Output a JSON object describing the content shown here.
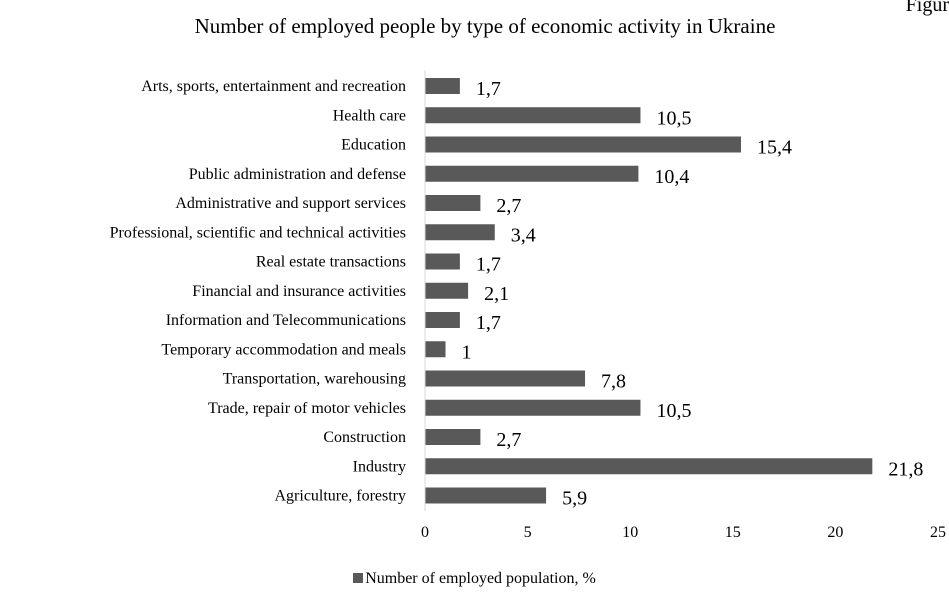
{
  "corner_text": "Figur",
  "chart_data": {
    "type": "bar",
    "orientation": "horizontal",
    "title": "Number of employed people by type of economic activity in Ukraine",
    "categories": [
      "Arts, sports, entertainment and recreation",
      "Health care",
      "Education",
      "Public administration and defense",
      "Administrative and support services",
      "Professional, scientific and technical activities",
      "Real estate transactions",
      "Financial and insurance activities",
      "Information and Telecommunications",
      "Temporary accommodation and meals",
      "Transportation, warehousing",
      "Trade, repair of motor vehicles",
      "Construction",
      "Industry",
      "Agriculture, forestry"
    ],
    "series": [
      {
        "name": "Number of employed population, %",
        "values": [
          1.7,
          10.5,
          15.4,
          10.4,
          2.7,
          3.4,
          1.7,
          2.1,
          1.7,
          1,
          7.8,
          10.5,
          2.7,
          21.8,
          5.9
        ],
        "labels": [
          "1,7",
          "10,5",
          "15,4",
          "10,4",
          "2,7",
          "3,4",
          "1,7",
          "2,1",
          "1,7",
          "1",
          "7,8",
          "10,5",
          "2,7",
          "21,8",
          "5,9"
        ]
      }
    ],
    "xlim": [
      0,
      25
    ],
    "xticks": [
      0,
      5,
      10,
      15,
      20,
      25
    ],
    "xtick_labels": [
      "0",
      "5",
      "10",
      "15",
      "20",
      "25"
    ],
    "grid": false,
    "legend_position": "bottom",
    "bar_color": "#595959"
  }
}
